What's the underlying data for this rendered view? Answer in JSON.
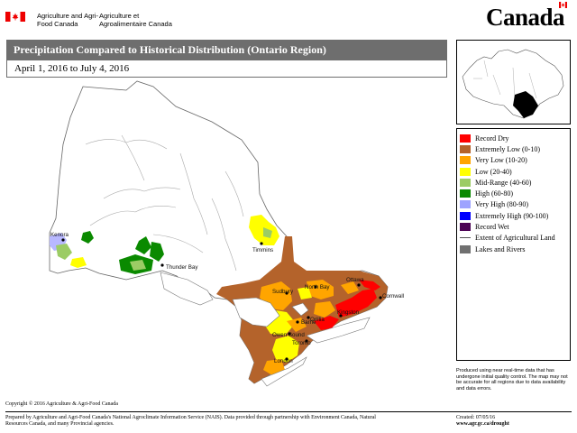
{
  "header": {
    "department_en": "Agriculture and Agri-Food Canada",
    "department_fr": "Agriculture et Agroalimentaire Canada",
    "wordmark": "Canada"
  },
  "map": {
    "title": "Precipitation Compared to Historical Distribution (Ontario Region)",
    "date_range": "April 1, 2016 to July 4, 2016",
    "cities": [
      "Kenora",
      "Thunder Bay",
      "Timmins",
      "Sudbury",
      "North Bay",
      "Ottawa",
      "Cornwall",
      "Kingston",
      "Barrie",
      "Owen Sound",
      "Orillia",
      "Toronto",
      "London"
    ]
  },
  "legend": {
    "items": [
      {
        "label": "Record Dry",
        "color": "#ff0000"
      },
      {
        "label": "Extremely Low (0-10)",
        "color": "#b4632b"
      },
      {
        "label": "Very Low (10-20)",
        "color": "#ffa500"
      },
      {
        "label": "Low (20-40)",
        "color": "#ffff00"
      },
      {
        "label": "Mid-Range (40-60)",
        "color": "#9ccc65"
      },
      {
        "label": "High (60-80)",
        "color": "#0a8a00"
      },
      {
        "label": "Very High (80-90)",
        "color": "#9ea3ff"
      },
      {
        "label": "Extremely High (90-100)",
        "color": "#0000ff"
      },
      {
        "label": "Record Wet",
        "color": "#4b0055"
      },
      {
        "label": "Extent of Agricultural Land",
        "color": "#555555"
      },
      {
        "label": "Lakes and Rivers",
        "color": "#707070"
      }
    ]
  },
  "footer": {
    "disclaimer": "Produced using near real-time data that has undergone initial quality control. The map may not be accurate for all regions due to data availability and data errors.",
    "copyright": "Copyright © 2016 Agriculture & Agri-Food Canada",
    "prepared_by": "Prepared by Agriculture and Agri-Food Canada's National Agroclimate Information Service (NAIS). Data provided through partnership with Environment Canada, Natural Resources Canada, and many Provincial agencies.",
    "created": "Created: 07/05/16",
    "url": "www.agr.gc.ca/drought"
  }
}
